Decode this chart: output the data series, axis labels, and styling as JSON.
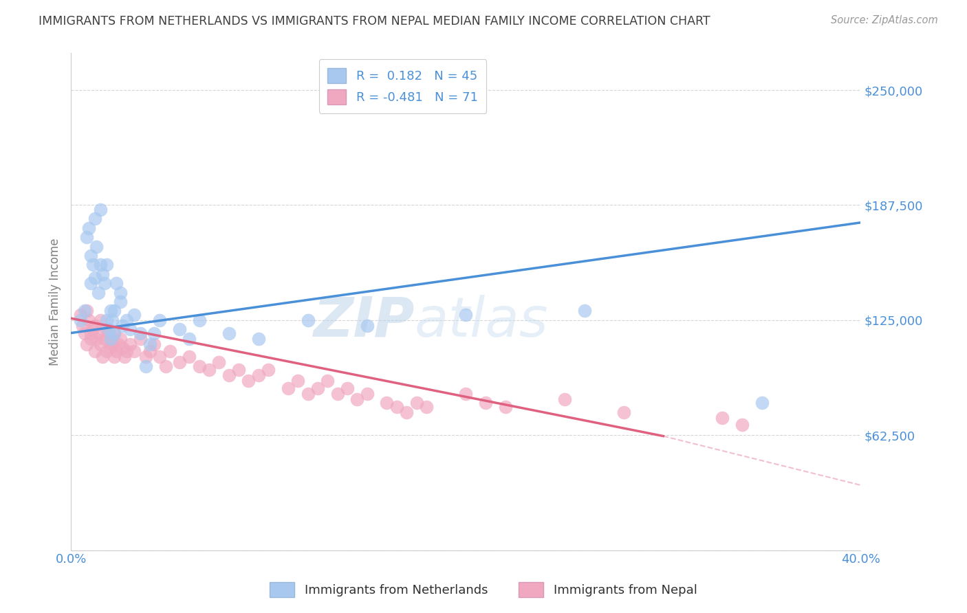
{
  "title": "IMMIGRANTS FROM NETHERLANDS VS IMMIGRANTS FROM NEPAL MEDIAN FAMILY INCOME CORRELATION CHART",
  "source": "Source: ZipAtlas.com",
  "ylabel": "Median Family Income",
  "xlim": [
    0.0,
    0.4
  ],
  "ylim": [
    0,
    270000
  ],
  "xtick_positions": [
    0.0,
    0.05,
    0.1,
    0.15,
    0.2,
    0.25,
    0.3,
    0.35,
    0.4
  ],
  "xtick_labels": [
    "0.0%",
    "",
    "",
    "",
    "",
    "",
    "",
    "",
    "40.0%"
  ],
  "ytick_positions": [
    0,
    62500,
    125000,
    187500,
    250000
  ],
  "ytick_labels": [
    "",
    "$62,500",
    "$125,000",
    "$187,500",
    "$250,000"
  ],
  "netherlands_R": 0.182,
  "netherlands_N": 45,
  "nepal_R": -0.481,
  "nepal_N": 71,
  "netherlands_color": "#a8c8f0",
  "nepal_color": "#f0a8c0",
  "netherlands_line_color": "#4a90d9",
  "nepal_line_color": "#e06080",
  "netherlands_scatter_x": [
    0.005,
    0.007,
    0.008,
    0.009,
    0.01,
    0.01,
    0.011,
    0.012,
    0.012,
    0.013,
    0.014,
    0.015,
    0.015,
    0.016,
    0.017,
    0.018,
    0.018,
    0.019,
    0.02,
    0.02,
    0.021,
    0.022,
    0.022,
    0.023,
    0.025,
    0.025,
    0.026,
    0.028,
    0.03,
    0.032,
    0.035,
    0.038,
    0.04,
    0.042,
    0.045,
    0.055,
    0.06,
    0.065,
    0.08,
    0.095,
    0.12,
    0.15,
    0.2,
    0.26,
    0.35
  ],
  "netherlands_scatter_y": [
    125000,
    130000,
    170000,
    175000,
    145000,
    160000,
    155000,
    180000,
    148000,
    165000,
    140000,
    185000,
    155000,
    150000,
    145000,
    155000,
    125000,
    120000,
    115000,
    130000,
    125000,
    130000,
    118000,
    145000,
    135000,
    140000,
    122000,
    125000,
    120000,
    128000,
    118000,
    100000,
    112000,
    118000,
    125000,
    120000,
    115000,
    125000,
    118000,
    115000,
    125000,
    122000,
    128000,
    130000,
    80000
  ],
  "nepal_scatter_x": [
    0.005,
    0.006,
    0.007,
    0.008,
    0.008,
    0.009,
    0.01,
    0.01,
    0.011,
    0.012,
    0.012,
    0.013,
    0.014,
    0.015,
    0.015,
    0.016,
    0.017,
    0.018,
    0.018,
    0.019,
    0.02,
    0.02,
    0.021,
    0.022,
    0.022,
    0.023,
    0.024,
    0.025,
    0.026,
    0.027,
    0.028,
    0.03,
    0.032,
    0.035,
    0.038,
    0.04,
    0.042,
    0.045,
    0.048,
    0.05,
    0.055,
    0.06,
    0.065,
    0.07,
    0.075,
    0.08,
    0.085,
    0.09,
    0.095,
    0.1,
    0.11,
    0.115,
    0.12,
    0.125,
    0.13,
    0.135,
    0.14,
    0.145,
    0.15,
    0.16,
    0.165,
    0.17,
    0.175,
    0.18,
    0.2,
    0.21,
    0.22,
    0.25,
    0.28,
    0.33,
    0.34
  ],
  "nepal_scatter_y": [
    128000,
    122000,
    118000,
    130000,
    112000,
    125000,
    115000,
    118000,
    120000,
    122000,
    108000,
    115000,
    118000,
    125000,
    112000,
    105000,
    115000,
    120000,
    108000,
    118000,
    115000,
    110000,
    112000,
    118000,
    105000,
    108000,
    112000,
    115000,
    110000,
    105000,
    108000,
    112000,
    108000,
    115000,
    105000,
    108000,
    112000,
    105000,
    100000,
    108000,
    102000,
    105000,
    100000,
    98000,
    102000,
    95000,
    98000,
    92000,
    95000,
    98000,
    88000,
    92000,
    85000,
    88000,
    92000,
    85000,
    88000,
    82000,
    85000,
    80000,
    78000,
    75000,
    80000,
    78000,
    85000,
    80000,
    78000,
    82000,
    75000,
    72000,
    68000
  ],
  "watermark_zip": "ZIP",
  "watermark_atlas": "atlas",
  "background_color": "#ffffff",
  "grid_color": "#cccccc",
  "title_color": "#404040",
  "axis_label_color": "#808080",
  "tick_color": "#4a90d9",
  "legend_text_color": "#303030"
}
